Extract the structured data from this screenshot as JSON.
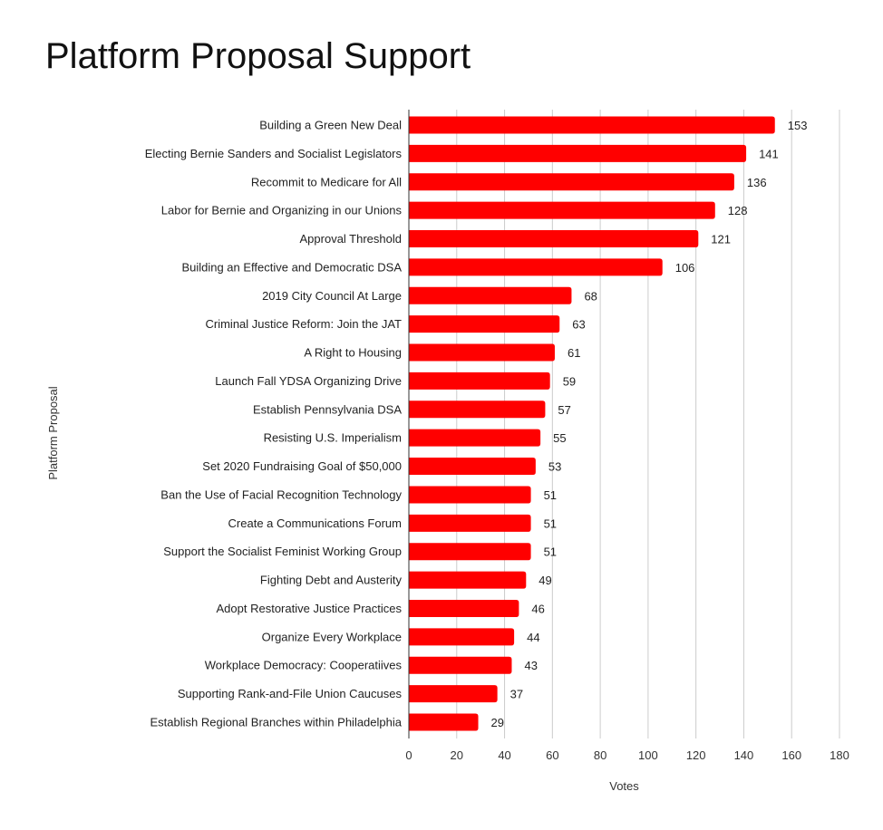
{
  "chart_data": {
    "type": "bar",
    "orientation": "horizontal",
    "title": "Platform Proposal Support",
    "xlabel": "Votes",
    "ylabel": "Platform Proposal",
    "xlim": [
      0,
      180
    ],
    "x_ticks": [
      0,
      20,
      40,
      60,
      80,
      100,
      120,
      140,
      160,
      180
    ],
    "grid": "vertical",
    "legend": "none",
    "bar_color": "#ff0000",
    "categories": [
      "Building a Green New Deal",
      "Electing Bernie Sanders and Socialist Legislators",
      "Recommit to Medicare for All",
      "Labor for Bernie and Organizing in our Unions",
      "Approval Threshold",
      "Building an Effective and Democratic DSA",
      "2019 City Council At Large",
      "Criminal Justice Reform: Join the JAT",
      "A Right to Housing",
      "Launch Fall YDSA Organizing Drive",
      "Establish Pennsylvania DSA",
      "Resisting U.S. Imperialism",
      "Set 2020 Fundraising Goal of $50,000",
      "Ban the Use of Facial Recognition Technology",
      "Create a Communications Forum",
      "Support the Socialist Feminist Working Group",
      "Fighting Debt and Austerity",
      "Adopt Restorative Justice Practices",
      "Organize Every Workplace",
      "Workplace Democracy: Cooperatiives",
      "Supporting Rank-and-File Union Caucuses",
      "Establish Regional Branches within Philadelphia"
    ],
    "values": [
      153,
      141,
      136,
      128,
      121,
      106,
      68,
      63,
      61,
      59,
      57,
      55,
      53,
      51,
      51,
      51,
      49,
      46,
      44,
      43,
      37,
      29
    ]
  }
}
